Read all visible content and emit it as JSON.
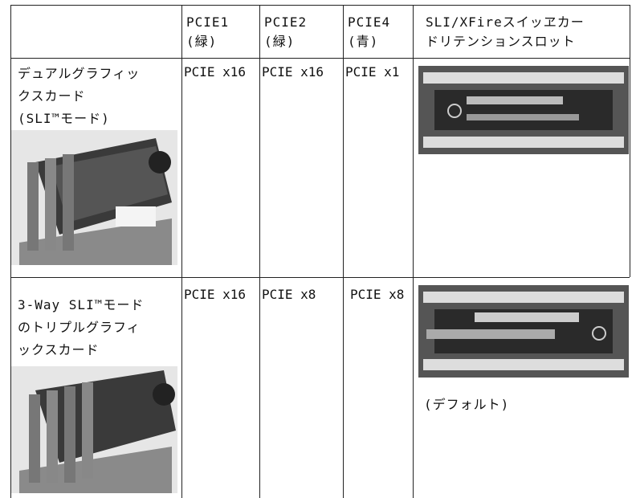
{
  "table": {
    "header": [
      [
        "PCIE1",
        "(緑)"
      ],
      [
        "PCIE2",
        "(緑)"
      ],
      [
        "PCIE4",
        "(青)"
      ],
      [
        "SLI/XFireスイッヱカー",
        "ドリテンションスロット"
      ]
    ],
    "rows": [
      {
        "label": [
          "デュアルグラフィッ",
          "クスカード",
          "(SLI™モード)"
        ],
        "cells": [
          "PCIE x16",
          "PCIE x16",
          "PCIE x1"
        ]
      },
      {
        "label": [
          "3-Way SLI™モード",
          "のトリプルグラフィ",
          "ックスカード"
        ],
        "cells": [
          "PCIE x16",
          "PCIE x8",
          "PCIE x8"
        ],
        "note": "(デフォルト)"
      }
    ]
  }
}
